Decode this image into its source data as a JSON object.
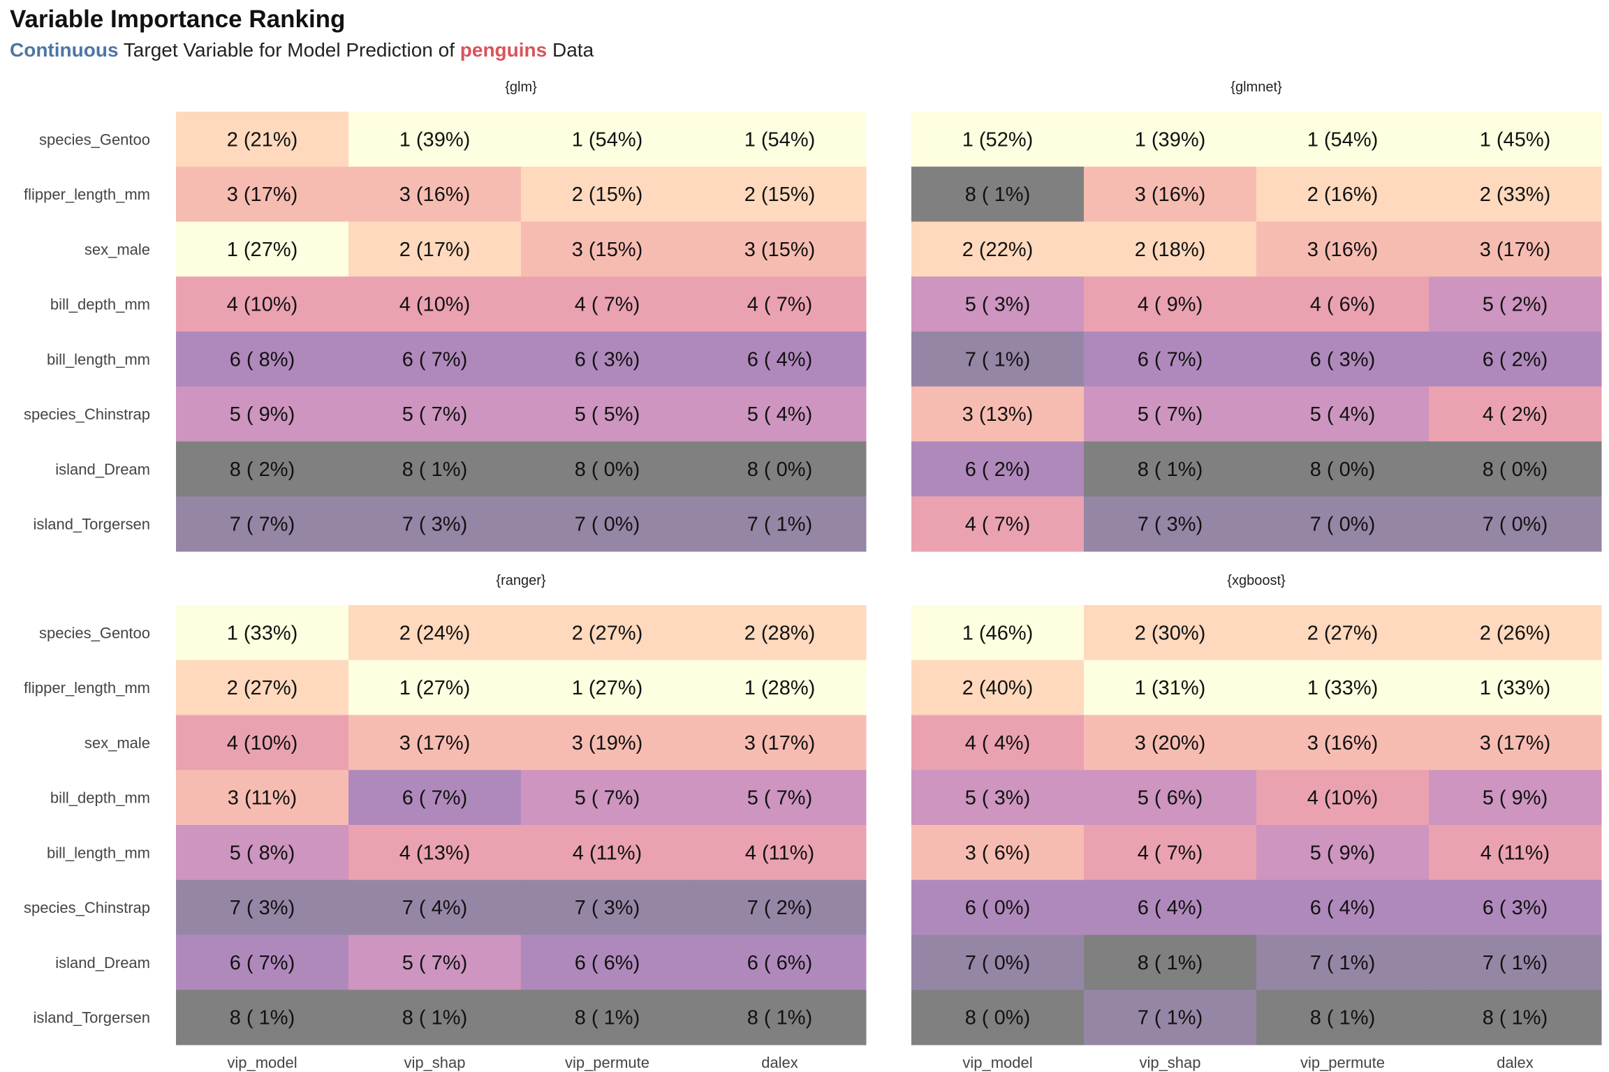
{
  "title": "Variable Importance Ranking",
  "subtitle": {
    "part1": "Continuous",
    "part2": " Target Variable for Model Prediction of ",
    "part3": "penguins",
    "part4": " Data",
    "color1": "#4d76a3",
    "color2": "#d9535a"
  },
  "chart_data": {
    "type": "heatmap",
    "rows": [
      "species_Gentoo",
      "flipper_length_mm",
      "sex_male",
      "bill_depth_mm",
      "bill_length_mm",
      "species_Chinstrap",
      "island_Dream",
      "island_Torgersen"
    ],
    "columns": [
      "vip_model",
      "vip_shap",
      "vip_permute",
      "dalex"
    ],
    "rank_colors": {
      "1": "#fefee0",
      "2": "#fed9bd",
      "3": "#f7bcb1",
      "4": "#eaa2b1",
      "5": "#cd95bf",
      "6": "#b089bc",
      "7": "#9586a6",
      "8": "#808080"
    },
    "panels": [
      {
        "title": "{glm}",
        "cells": [
          [
            "2 (21%)",
            "1 (39%)",
            "1 (54%)",
            "1 (54%)"
          ],
          [
            "3 (17%)",
            "3 (16%)",
            "2 (15%)",
            "2 (15%)"
          ],
          [
            "1 (27%)",
            "2 (17%)",
            "3 (15%)",
            "3 (15%)"
          ],
          [
            "4 (10%)",
            "4 (10%)",
            "4 ( 7%)",
            "4 ( 7%)"
          ],
          [
            "6 ( 8%)",
            "6 ( 7%)",
            "6 ( 3%)",
            "6 ( 4%)"
          ],
          [
            "5 ( 9%)",
            "5 ( 7%)",
            "5 ( 5%)",
            "5 ( 4%)"
          ],
          [
            "8 ( 2%)",
            "8 ( 1%)",
            "8 ( 0%)",
            "8 ( 0%)"
          ],
          [
            "7 ( 7%)",
            "7 ( 3%)",
            "7 ( 0%)",
            "7 ( 1%)"
          ]
        ]
      },
      {
        "title": "{glmnet}",
        "cells": [
          [
            "1 (52%)",
            "1 (39%)",
            "1 (54%)",
            "1 (45%)"
          ],
          [
            "8 ( 1%)",
            "3 (16%)",
            "2 (16%)",
            "2 (33%)"
          ],
          [
            "2 (22%)",
            "2 (18%)",
            "3 (16%)",
            "3 (17%)"
          ],
          [
            "5 ( 3%)",
            "4 ( 9%)",
            "4 ( 6%)",
            "5 ( 2%)"
          ],
          [
            "7 ( 1%)",
            "6 ( 7%)",
            "6 ( 3%)",
            "6 ( 2%)"
          ],
          [
            "3 (13%)",
            "5 ( 7%)",
            "5 ( 4%)",
            "4 ( 2%)"
          ],
          [
            "6 ( 2%)",
            "8 ( 1%)",
            "8 ( 0%)",
            "8 ( 0%)"
          ],
          [
            "4 ( 7%)",
            "7 ( 3%)",
            "7 ( 0%)",
            "7 ( 0%)"
          ]
        ]
      },
      {
        "title": "{ranger}",
        "cells": [
          [
            "1 (33%)",
            "2 (24%)",
            "2 (27%)",
            "2 (28%)"
          ],
          [
            "2 (27%)",
            "1 (27%)",
            "1 (27%)",
            "1 (28%)"
          ],
          [
            "4 (10%)",
            "3 (17%)",
            "3 (19%)",
            "3 (17%)"
          ],
          [
            "3 (11%)",
            "6 ( 7%)",
            "5 ( 7%)",
            "5 ( 7%)"
          ],
          [
            "5 ( 8%)",
            "4 (13%)",
            "4 (11%)",
            "4 (11%)"
          ],
          [
            "7 ( 3%)",
            "7 ( 4%)",
            "7 ( 3%)",
            "7 ( 2%)"
          ],
          [
            "6 ( 7%)",
            "5 ( 7%)",
            "6 ( 6%)",
            "6 ( 6%)"
          ],
          [
            "8 ( 1%)",
            "8 ( 1%)",
            "8 ( 1%)",
            "8 ( 1%)"
          ]
        ]
      },
      {
        "title": "{xgboost}",
        "cells": [
          [
            "1 (46%)",
            "2 (30%)",
            "2 (27%)",
            "2 (26%)"
          ],
          [
            "2 (40%)",
            "1 (31%)",
            "1 (33%)",
            "1 (33%)"
          ],
          [
            "4 ( 4%)",
            "3 (20%)",
            "3 (16%)",
            "3 (17%)"
          ],
          [
            "5 ( 3%)",
            "5 ( 6%)",
            "4 (10%)",
            "5 ( 9%)"
          ],
          [
            "3 ( 6%)",
            "4 ( 7%)",
            "5 ( 9%)",
            "4 (11%)"
          ],
          [
            "6 ( 0%)",
            "6 ( 4%)",
            "6 ( 4%)",
            "6 ( 3%)"
          ],
          [
            "7 ( 0%)",
            "8 ( 1%)",
            "7 ( 1%)",
            "7 ( 1%)"
          ],
          [
            "8 ( 0%)",
            "7 ( 1%)",
            "8 ( 1%)",
            "8 ( 1%)"
          ]
        ]
      }
    ]
  }
}
